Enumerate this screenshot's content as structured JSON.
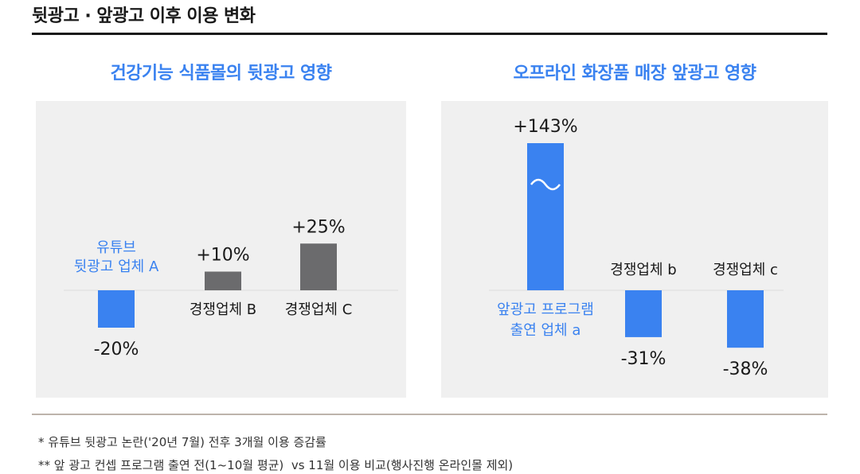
{
  "title": "뒷광고 · 앞광고 이후 이용 변화",
  "notes": [
    "* 유튜브 뒷광고 논란('20년 7월) 전후 3개월 이용 증감률",
    "** 앞 광고 컨셉 프로그램 출연 전(1~10월 평균)  vs 11월 이용 비교(행사진행 온라인몰 제외)"
  ],
  "colors": {
    "accent": "#3a82f0",
    "gray": "#6b6b6d",
    "panel_bg": "#f0f0f0"
  },
  "chart_data": [
    {
      "type": "bar",
      "title": "건강기능 식품몰의 뒷광고 영향",
      "categories": [
        [
          "유튜브",
          "뒷광고 업체 A"
        ],
        [
          "경쟁업체 B"
        ],
        [
          "경쟁업체 C"
        ]
      ],
      "values": [
        -20,
        10,
        25
      ],
      "value_labels": [
        "-20%",
        "+10%",
        "+25%"
      ],
      "highlight_index": 0,
      "ylim": [
        -40,
        150
      ],
      "axis_break": false
    },
    {
      "type": "bar",
      "title": "오프라인 화장품 매장 앞광고 영향",
      "categories": [
        [
          "앞광고 프로그램",
          "출연 업체 a"
        ],
        [
          "경쟁업체 b"
        ],
        [
          "경쟁업체 c"
        ]
      ],
      "values": [
        143,
        -31,
        -38
      ],
      "value_labels": [
        "+143%",
        "-31%",
        "-38%"
      ],
      "highlight_index": 0,
      "ylim": [
        -40,
        150
      ],
      "axis_break": true
    }
  ]
}
